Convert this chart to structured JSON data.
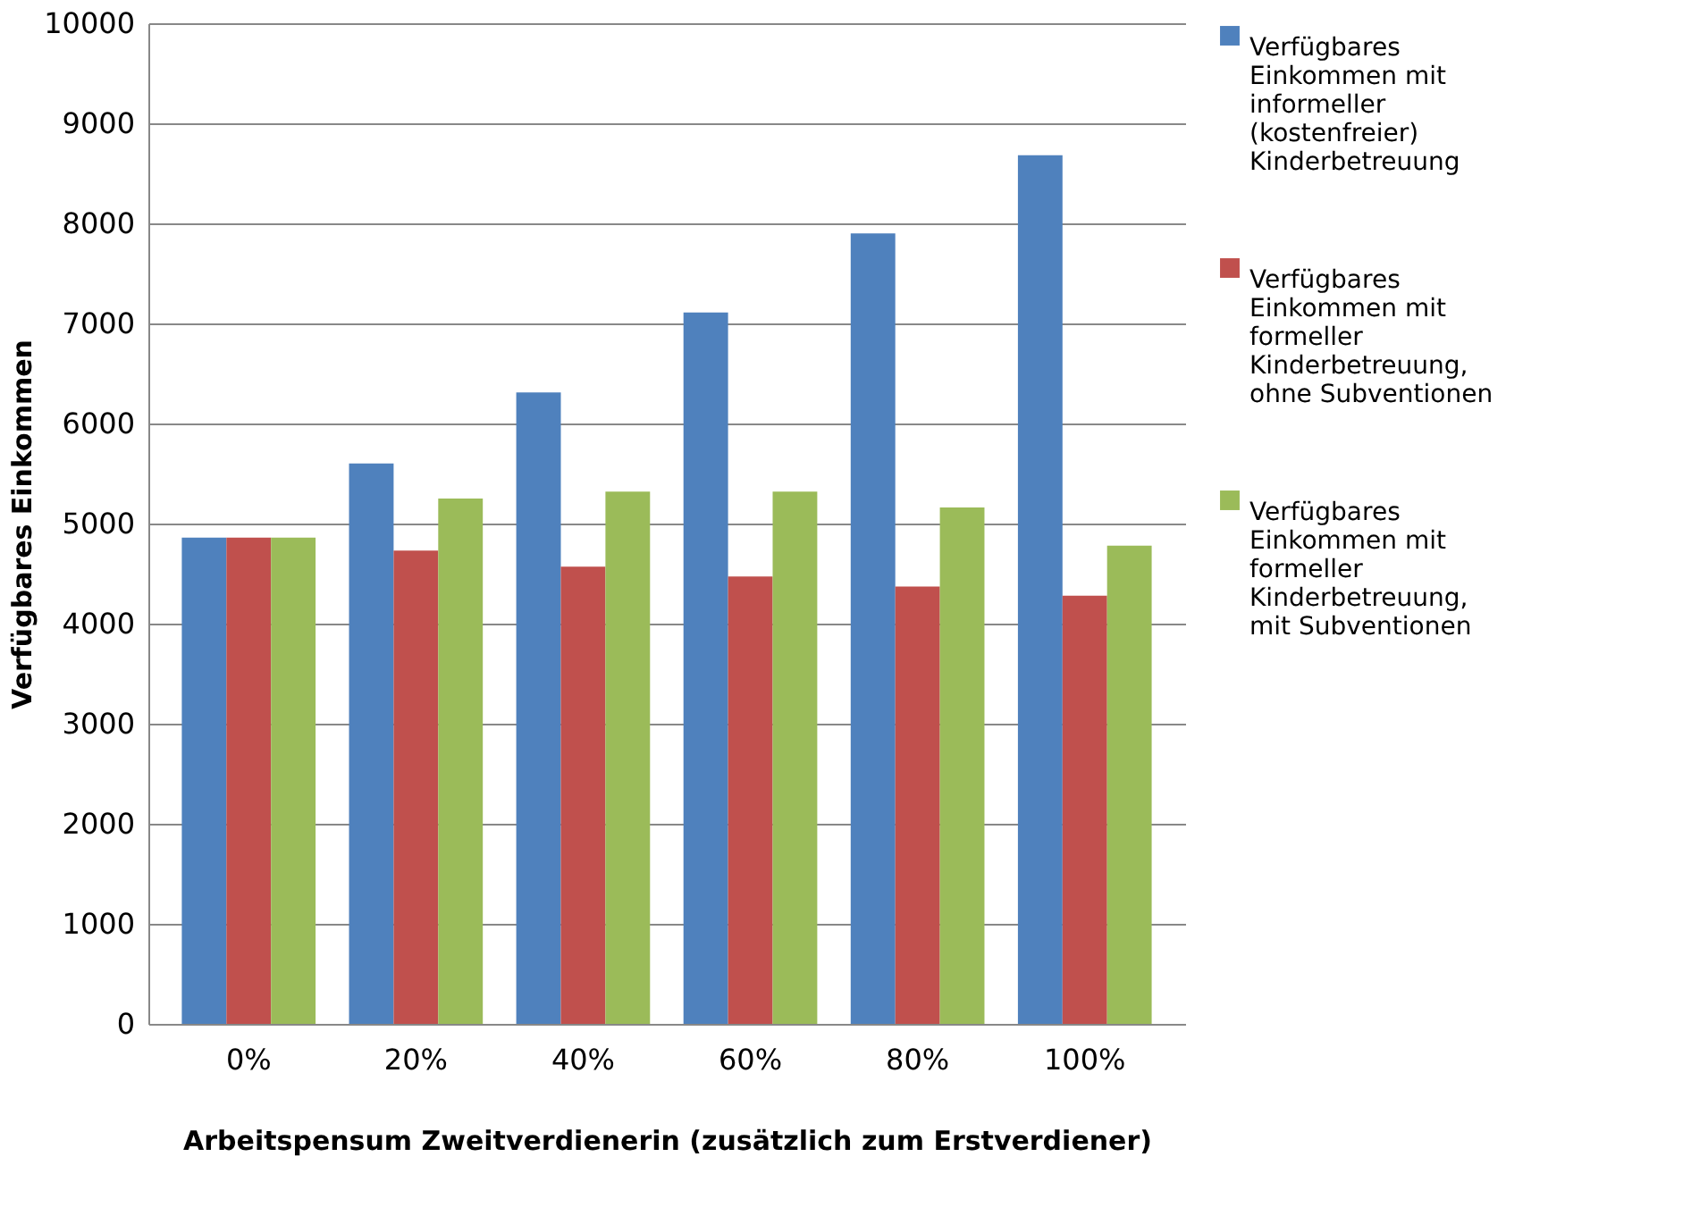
{
  "chart_data": {
    "type": "bar",
    "xlabel": "Arbeitspensum Zweitverdienerin (zusätzlich zum Erstverdiener)",
    "ylabel": "Verfügbares Einkommen",
    "categories": [
      "0%",
      "20%",
      "40%",
      "60%",
      "80%",
      "100%"
    ],
    "series": [
      {
        "name": "Verfügbares Einkommen mit informeller (kostenfreier) Kinderbetreuung",
        "color": "#4f81bd",
        "values": [
          4860,
          5600,
          6310,
          7110,
          7900,
          8680
        ]
      },
      {
        "name": "Verfügbares Einkommen mit formeller Kinderbetreuung, ohne Subventionen",
        "color": "#c0504d",
        "values": [
          4860,
          4730,
          4570,
          4470,
          4370,
          4280
        ]
      },
      {
        "name": "Verfügbares Einkommen mit formeller Kinderbetreuung, mit Subventionen",
        "color": "#9bbb59",
        "values": [
          4860,
          5250,
          5320,
          5320,
          5160,
          4780
        ]
      }
    ],
    "ylim": [
      0,
      10000
    ],
    "yticks": [
      0,
      1000,
      2000,
      3000,
      4000,
      5000,
      6000,
      7000,
      8000,
      9000,
      10000
    ],
    "grid": "y",
    "legend": "right"
  }
}
